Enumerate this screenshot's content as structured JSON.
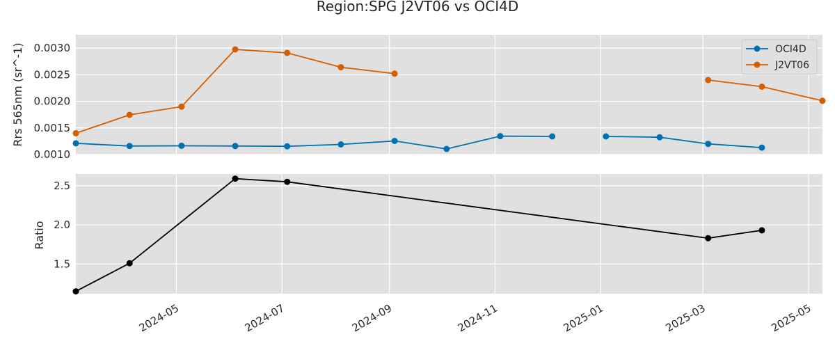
{
  "chart_data": {
    "type": "line",
    "title": "Region:SPG J2VT06 vs OCI4D",
    "x_axis": {
      "type": "date",
      "range": [
        "2024-03-04",
        "2025-05-09"
      ],
      "tick_labels": [
        "2024-05",
        "2024-07",
        "2024-09",
        "2024-11",
        "2025-01",
        "2025-03",
        "2025-05"
      ]
    },
    "panels": [
      {
        "ylabel": "Rrs 565nm (sr^-1)",
        "ylim": [
          0.001,
          0.00325
        ],
        "ytick_labels": [
          "0.0010",
          "0.0015",
          "0.0020",
          "0.0025",
          "0.0030"
        ],
        "legend": "top-right",
        "grid": true,
        "series": [
          {
            "name": "OCI4D",
            "color": "#0072b2",
            "points": [
              [
                "2024-03-04",
                0.00121
              ],
              [
                "2024-04-04",
                0.00116
              ],
              [
                "2024-05-04",
                0.001165
              ],
              [
                "2024-06-04",
                0.00116
              ],
              [
                "2024-07-04",
                0.001155
              ],
              [
                "2024-08-04",
                0.00119
              ],
              [
                "2024-09-04",
                0.001255
              ],
              [
                "2024-10-04",
                0.001105
              ],
              [
                "2024-11-04",
                0.001345
              ],
              [
                "2024-12-04",
                0.00134
              ],
              null,
              [
                "2025-01-04",
                0.00134
              ],
              [
                "2025-02-04",
                0.001325
              ],
              [
                "2025-03-04",
                0.0012
              ],
              [
                "2025-04-04",
                0.00113
              ]
            ]
          },
          {
            "name": "J2VT06",
            "color": "#d55e00",
            "points": [
              [
                "2024-03-04",
                0.0014
              ],
              [
                "2024-04-04",
                0.001745
              ],
              [
                "2024-05-04",
                0.0019
              ],
              [
                "2024-06-04",
                0.002975
              ],
              [
                "2024-07-04",
                0.00291
              ],
              [
                "2024-08-04",
                0.00264
              ],
              [
                "2024-09-04",
                0.00252
              ],
              null,
              [
                "2025-03-04",
                0.0024
              ],
              [
                "2025-04-04",
                0.002275
              ],
              [
                "2025-05-09",
                0.00201
              ]
            ]
          }
        ]
      },
      {
        "ylabel": "Ratio",
        "ylim": [
          1.12,
          2.65
        ],
        "ytick_labels": [
          "1.5",
          "2.0",
          "2.5"
        ],
        "grid": true,
        "series": [
          {
            "color": "#000000",
            "points": [
              [
                "2024-03-04",
                1.15
              ],
              [
                "2024-04-04",
                1.51
              ],
              [
                "2024-06-04",
                2.59
              ],
              [
                "2024-07-04",
                2.55
              ],
              [
                "2025-03-04",
                1.83
              ],
              [
                "2025-04-04",
                1.93
              ]
            ]
          }
        ]
      }
    ]
  }
}
